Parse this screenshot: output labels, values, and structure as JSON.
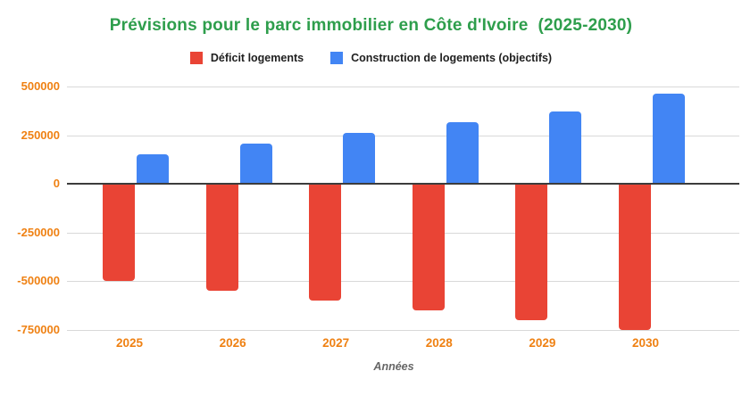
{
  "chart_data": {
    "type": "bar",
    "title": "Prévisions pour le parc immobilier en Côte d'Ivoire  (2025-2030)",
    "title_color": "#2e9e4c",
    "categories": [
      "2025",
      "2026",
      "2027",
      "2028",
      "2029",
      "2030"
    ],
    "series": [
      {
        "name": "Déficit logements",
        "color": "#e94435",
        "values": [
          -500000,
          -550000,
          -600000,
          -650000,
          -700000,
          -750000
        ]
      },
      {
        "name": "Construction de logements (objectifs)",
        "color": "#4285f4",
        "values": [
          150000,
          205000,
          260000,
          315000,
          370000,
          465000
        ]
      }
    ],
    "xlabel": "Années",
    "ylabel": "",
    "ylim": [
      -750000,
      500000
    ],
    "yticks": [
      500000,
      250000,
      0,
      -250000,
      -500000,
      -750000
    ],
    "grid": true,
    "legend_position": "top",
    "tick_label_color": "#ef8113",
    "axis_title_color": "#666666",
    "zero_line_color": "#3c3c3c",
    "gridline_color": "#d9d9d9",
    "background_color": "#ffffff"
  }
}
